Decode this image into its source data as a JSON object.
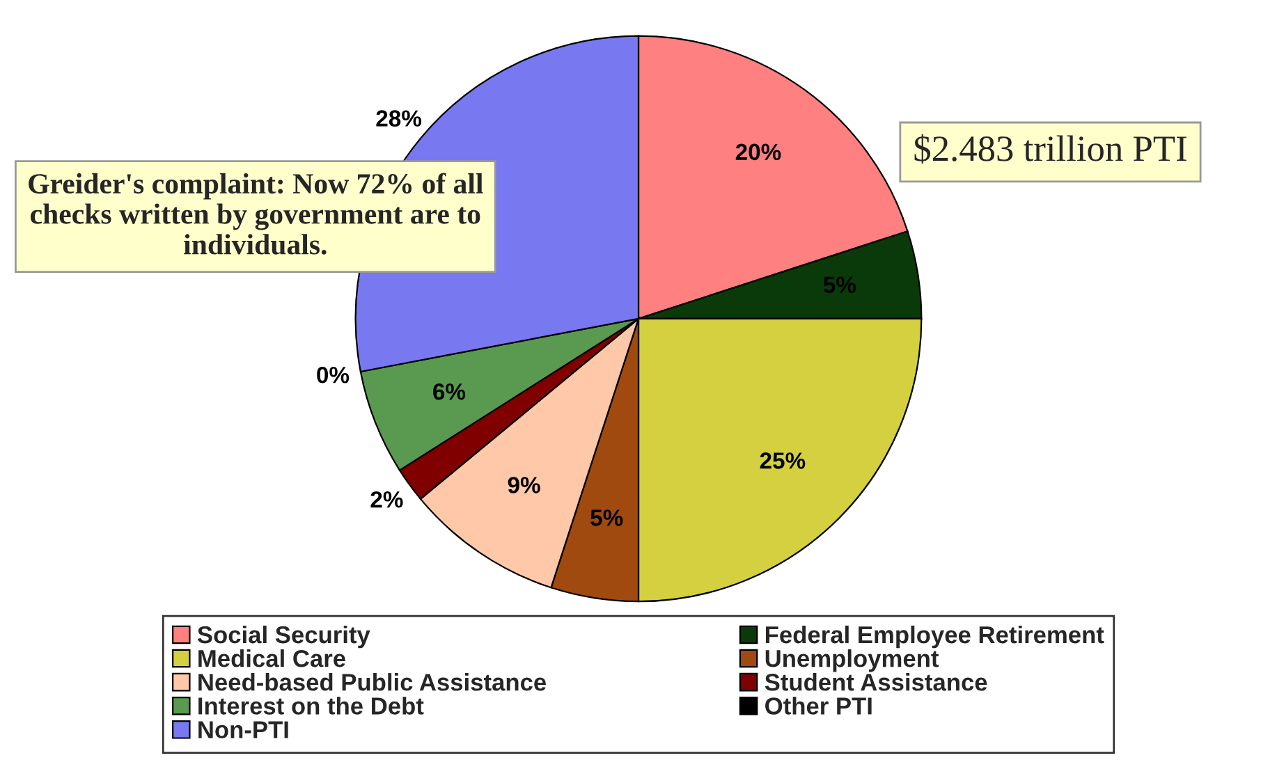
{
  "chart_data": {
    "type": "pie",
    "categories": [
      "Social Security",
      "Federal Employee Retirement",
      "Medical Care",
      "Unemployment",
      "Need-based Public Assistance",
      "Student Assistance",
      "Interest on the Debt",
      "Other PTI",
      "Non-PTI"
    ],
    "values": [
      20,
      5,
      25,
      5,
      9,
      2,
      6,
      0,
      28
    ],
    "value_labels": [
      "20%",
      "5%",
      "25%",
      "5%",
      "9%",
      "2%",
      "6%",
      "0%",
      "28%"
    ],
    "colors": [
      "#ff8080",
      "#0a3a0a",
      "#d4d040",
      "#a04a10",
      "#ffc8a8",
      "#800000",
      "#5a9a50",
      "#000000",
      "#7878f0"
    ],
    "annotations": [
      "$2.483 trillion PTI",
      "Greider's complaint: Now 72% of all checks written by government are to individuals."
    ],
    "legend": "bottom"
  }
}
